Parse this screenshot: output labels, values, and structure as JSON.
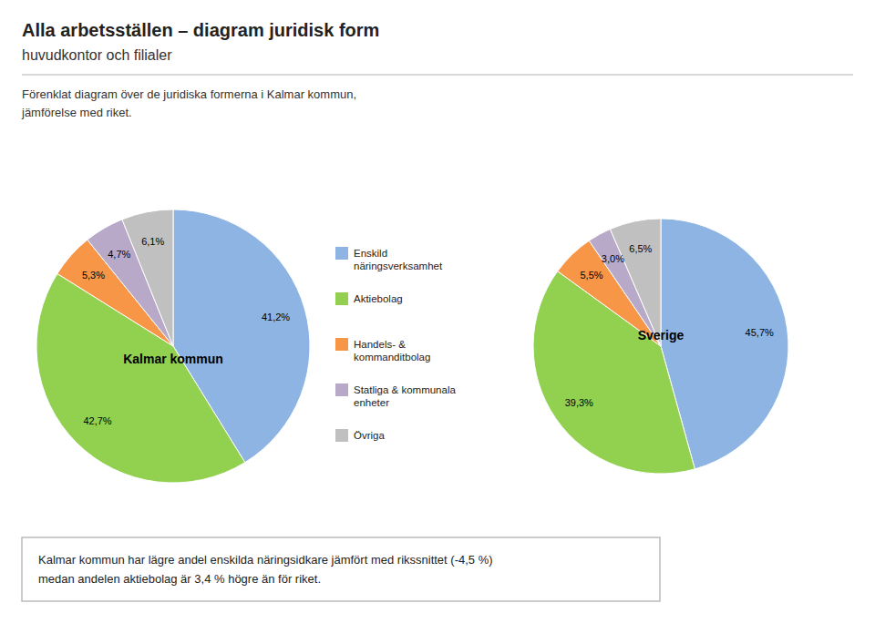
{
  "title": "Alla arbetsställen – diagram juridisk form",
  "subtitle": "huvudkontor och filialer",
  "annotations": [
    "Förenklat diagram över de juridiska formerna i Kalmar kommun,\njämförelse med riket.",
    "Kalmar kommun har lägre andel enskilda näringsidkare jämfört med rikssnittet (-4,5 %)\nmedan andelen aktiebolag är 3,4 % högre än för riket."
  ],
  "chart_data": [
    {
      "type": "pie",
      "title": "Kalmar kommun",
      "categories": [
        "Enskild\nnäringsverksamhet",
        "Aktiebolag",
        "Handels- &\nkommanditbolag",
        "Statliga & kommunala\nenheter",
        "Övriga"
      ],
      "values": [
        41.2,
        42.7,
        5.3,
        4.7,
        6.1
      ],
      "value_labels": [
        "41,2%",
        "42,7%",
        "5,3%",
        "4,7%",
        "6,1%"
      ],
      "colors": [
        "#8DB4E2",
        "#92D050",
        "#F79646",
        "#B8A9C9",
        "#C0C0C0"
      ],
      "data_labels": true,
      "legend": "right"
    },
    {
      "type": "pie",
      "title": "Sverige",
      "categories": [
        "Enskild\nnäringsverksamhet",
        "Aktiebolag",
        "Handels- &\nkommanditbolag",
        "Statliga & kommunala\nenheter",
        "Övriga"
      ],
      "values": [
        45.7,
        39.3,
        5.5,
        3.0,
        6.5
      ],
      "value_labels": [
        "45,7%",
        "39,3%",
        "5,5%",
        "3,0%",
        "6,5%"
      ],
      "colors": [
        "#8DB4E2",
        "#92D050",
        "#F79646",
        "#B8A9C9",
        "#C0C0C0"
      ],
      "data_labels": true
    }
  ]
}
